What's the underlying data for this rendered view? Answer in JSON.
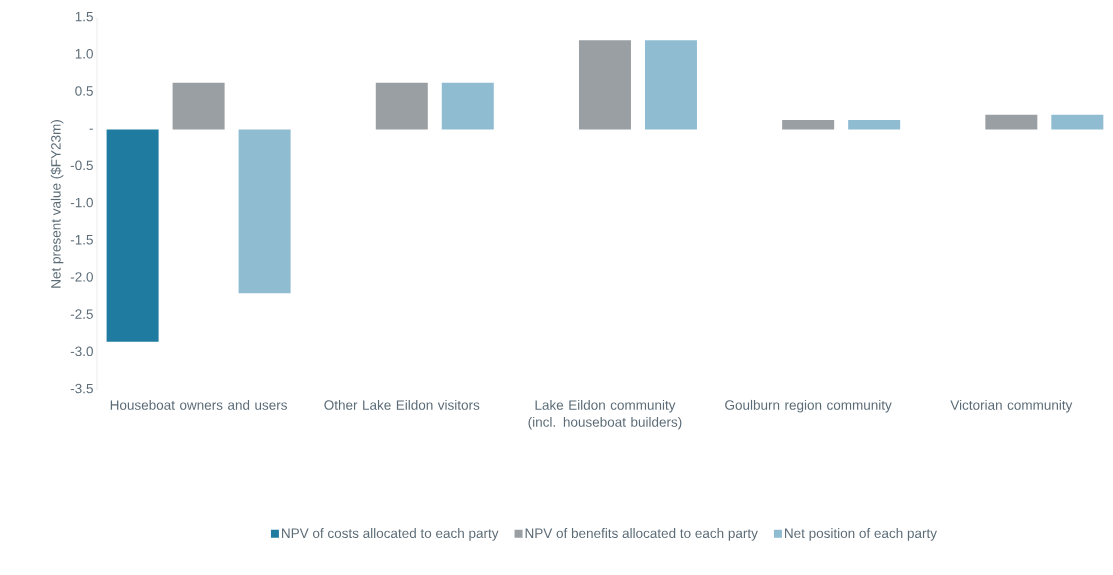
{
  "chart_data": {
    "type": "bar",
    "ylabel": "Net present value ($FY23m)",
    "categories": [
      "Houseboat owners and users",
      "Other Lake Eildon visitors",
      "Lake Eildon community (incl. houseboat builders)",
      "Goulburn region community",
      "Victorian community"
    ],
    "series": [
      {
        "name": "NPV of costs allocated to each party",
        "color": "#1f7ba0",
        "values": [
          -2.85,
          null,
          null,
          null,
          null
        ]
      },
      {
        "name": "NPV of benefits allocated to each party",
        "color": "#9a9fa3",
        "values": [
          0.63,
          0.63,
          1.2,
          0.13,
          0.2
        ]
      },
      {
        "name": "Net position of each party",
        "color": "#90bcd2",
        "values": [
          -2.2,
          0.63,
          1.2,
          0.13,
          0.2
        ]
      }
    ],
    "ylim": [
      -3.5,
      1.5
    ],
    "yticks": [
      -3.5,
      {
        "value": -3,
        "label": "-3.0"
      },
      -2.5,
      {
        "value": -2,
        "label": "-2.0"
      },
      -1.5,
      {
        "value": -1,
        "label": "-1.0"
      },
      -0.5,
      {
        "value": 0,
        "label": "-"
      },
      0.5,
      {
        "value": 1,
        "label": "1.0"
      },
      1.5
    ],
    "grid": false,
    "legend": "bottom"
  }
}
